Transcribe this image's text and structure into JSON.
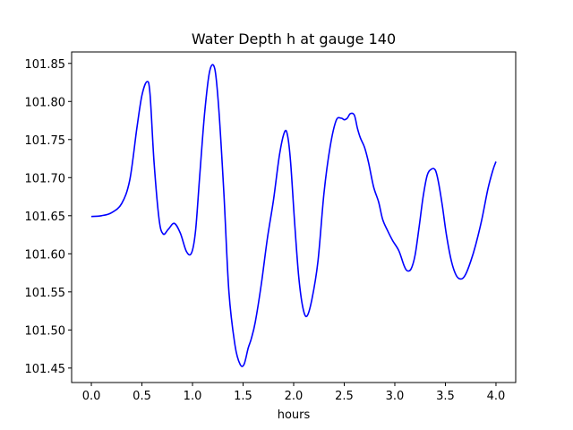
{
  "chart_data": {
    "type": "line",
    "title": "Water Depth h at gauge 140",
    "xlabel": "hours",
    "ylabel": "",
    "xlim": [
      -0.195,
      4.195
    ],
    "ylim": [
      101.431,
      101.865
    ],
    "xticks": [
      0.0,
      0.5,
      1.0,
      1.5,
      2.0,
      2.5,
      3.0,
      3.5,
      4.0
    ],
    "xtick_labels": [
      "0.0",
      "0.5",
      "1.0",
      "1.5",
      "2.0",
      "2.5",
      "3.0",
      "3.5",
      "4.0"
    ],
    "yticks": [
      101.45,
      101.5,
      101.55,
      101.6,
      101.65,
      101.7,
      101.75,
      101.8,
      101.85
    ],
    "ytick_labels": [
      "101.45",
      "101.50",
      "101.55",
      "101.60",
      "101.65",
      "101.70",
      "101.75",
      "101.80",
      "101.85"
    ],
    "grid": false,
    "series": [
      {
        "color": "#0000ff",
        "x": [
          0.0,
          0.1,
          0.2,
          0.3,
          0.38,
          0.45,
          0.5,
          0.55,
          0.58,
          0.62,
          0.67,
          0.71,
          0.76,
          0.82,
          0.88,
          0.94,
          0.99,
          1.03,
          1.07,
          1.12,
          1.17,
          1.22,
          1.26,
          1.31,
          1.36,
          1.42,
          1.47,
          1.51,
          1.55,
          1.58,
          1.62,
          1.68,
          1.74,
          1.8,
          1.86,
          1.91,
          1.94,
          1.97,
          2.01,
          2.05,
          2.09,
          2.13,
          2.18,
          2.24,
          2.3,
          2.36,
          2.42,
          2.47,
          2.5,
          2.53,
          2.56,
          2.6,
          2.63,
          2.66,
          2.7,
          2.74,
          2.79,
          2.84,
          2.88,
          2.93,
          2.98,
          3.04,
          3.09,
          3.12,
          3.16,
          3.2,
          3.24,
          3.28,
          3.32,
          3.36,
          3.4,
          3.43,
          3.47,
          3.51,
          3.56,
          3.61,
          3.66,
          3.7,
          3.75,
          3.8,
          3.86,
          3.92,
          3.97,
          4.0
        ],
        "y": [
          101.649,
          101.65,
          101.654,
          101.666,
          101.697,
          101.765,
          101.808,
          101.826,
          101.81,
          101.72,
          101.645,
          101.626,
          101.632,
          101.64,
          101.627,
          101.603,
          101.601,
          101.63,
          101.7,
          101.785,
          101.84,
          101.843,
          101.79,
          101.68,
          101.55,
          101.48,
          101.455,
          101.455,
          101.476,
          101.488,
          101.51,
          101.56,
          101.62,
          101.67,
          101.73,
          101.76,
          101.755,
          101.72,
          101.64,
          101.57,
          101.53,
          101.518,
          101.54,
          101.59,
          101.68,
          101.74,
          101.775,
          101.778,
          101.776,
          101.778,
          101.784,
          101.782,
          101.765,
          101.752,
          101.74,
          101.72,
          101.688,
          101.668,
          101.645,
          101.63,
          101.617,
          101.604,
          101.585,
          101.578,
          101.58,
          101.598,
          101.635,
          101.675,
          101.703,
          101.711,
          101.71,
          101.695,
          101.663,
          101.625,
          101.59,
          101.571,
          101.567,
          101.573,
          101.59,
          101.612,
          101.645,
          101.685,
          101.71,
          101.721
        ]
      }
    ]
  }
}
